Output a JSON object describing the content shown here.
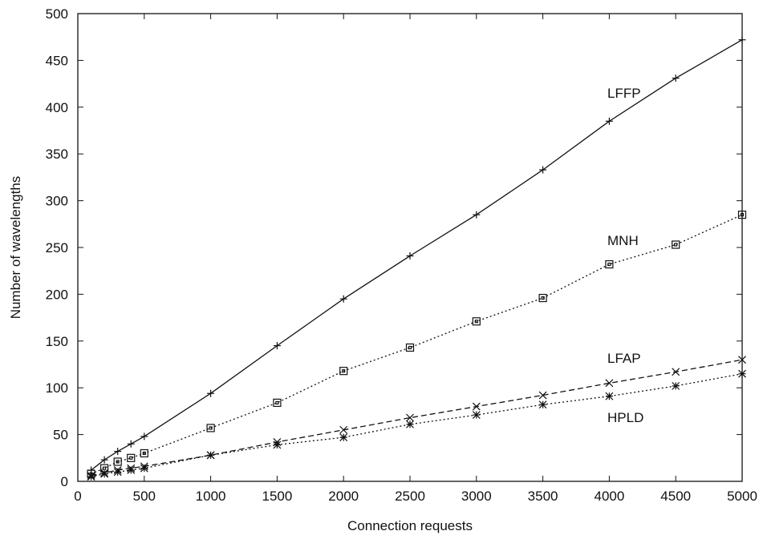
{
  "chart_data": {
    "type": "line",
    "title": "",
    "xlabel": "Connection requests",
    "ylabel": "Number of wavelengths",
    "xlim": [
      0,
      5000
    ],
    "ylim": [
      0,
      500
    ],
    "xticks": [
      0,
      500,
      1000,
      1500,
      2000,
      2500,
      3000,
      3500,
      4000,
      4500,
      5000
    ],
    "yticks": [
      0,
      50,
      100,
      150,
      200,
      250,
      300,
      350,
      400,
      450,
      500
    ],
    "grid": false,
    "legend": "inline labels",
    "x": [
      100,
      200,
      300,
      400,
      500,
      1000,
      1500,
      2000,
      2500,
      3000,
      3500,
      4000,
      4500,
      5000
    ],
    "series": [
      {
        "name": "LFFP",
        "marker": "plus",
        "line_style": "solid",
        "values": [
          12,
          23,
          32,
          40,
          48,
          94,
          145,
          195,
          241,
          285,
          333,
          385,
          431,
          472
        ]
      },
      {
        "name": "MNH",
        "marker": "square",
        "line_style": "dotted",
        "values": [
          8,
          14,
          21,
          25,
          30,
          57,
          84,
          118,
          143,
          171,
          196,
          232,
          253,
          285
        ]
      },
      {
        "name": "LFAP",
        "marker": "x",
        "line_style": "dashed",
        "values": [
          6,
          9,
          12,
          14,
          16,
          28,
          42,
          55,
          68,
          80,
          92,
          105,
          117,
          130
        ]
      },
      {
        "name": "HPLD",
        "marker": "star",
        "line_style": "dotted",
        "values": [
          5,
          8,
          10,
          12,
          14,
          28,
          39,
          47,
          61,
          71,
          82,
          91,
          102,
          115
        ]
      }
    ]
  }
}
